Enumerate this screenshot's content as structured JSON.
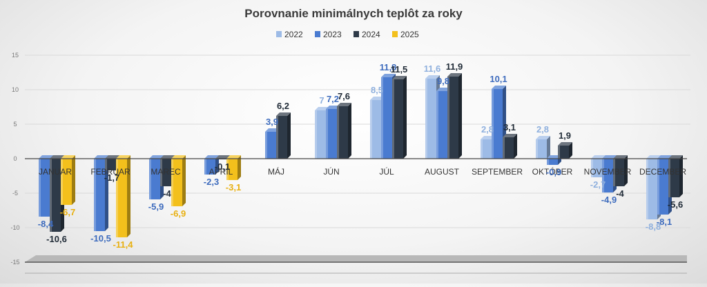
{
  "chart_data": {
    "type": "bar",
    "title": "Porovnanie minimálnych teplôt za roky",
    "categories": [
      "JANUAR",
      "FEBRUAR",
      "MAREC",
      "APRIL",
      "MÁJ",
      "JÚN",
      "JÚL",
      "AUGUST",
      "SEPTEMBER",
      "OKTÓBER",
      "NOVEMBER",
      "DECEMBER"
    ],
    "series": [
      {
        "name": "2022",
        "color": "#9dbbe6",
        "label_color": "#8fb0de",
        "values": [
          null,
          null,
          null,
          null,
          null,
          7,
          8.5,
          11.6,
          2.8,
          2.8,
          -2.7,
          -8.8
        ],
        "labels": [
          null,
          null,
          null,
          null,
          null,
          "7",
          "8,5",
          "11,6",
          "2,8",
          "2,8",
          "-2,7",
          "-8,8"
        ]
      },
      {
        "name": "2023",
        "color": "#4a7bd0",
        "label_color": "#3d6bbd",
        "values": [
          -8.4,
          -10.5,
          -5.9,
          -2.3,
          3.9,
          7.2,
          11.8,
          9.8,
          10.1,
          -0.9,
          -4.9,
          -8.1
        ],
        "labels": [
          "-8,4",
          "-10,5",
          "-5,9",
          "-2,3",
          "3,9",
          "7,2",
          "11,8",
          "9,8",
          "10,1",
          "-0,9",
          "-4,9",
          "-8,1"
        ]
      },
      {
        "name": "2024",
        "color": "#2e3a48",
        "label_color": "#1f2a36",
        "values": [
          -10.6,
          -1.7,
          -4,
          -0.1,
          6.2,
          7.6,
          11.5,
          11.9,
          3.1,
          1.9,
          -4,
          -5.6
        ],
        "labels": [
          "-10,6",
          "-1,7",
          "-4",
          "-0,1",
          "6,2",
          "7,6",
          "11,5",
          "11,9",
          "3,1",
          "1,9",
          "-4",
          "-5,6"
        ]
      },
      {
        "name": "2025",
        "color": "#f3c01c",
        "label_color": "#e8b010",
        "values": [
          -6.7,
          -11.4,
          -6.9,
          -3.1,
          null,
          null,
          null,
          null,
          null,
          null,
          null,
          null
        ],
        "labels": [
          "-6,7",
          "-11,4",
          "-6,9",
          "-3,1",
          null,
          null,
          null,
          null,
          null,
          null,
          null,
          null
        ]
      }
    ],
    "y_ticks": [
      "15",
      "10",
      "5",
      "0",
      "-5",
      "-10",
      "-15"
    ],
    "ylim": [
      -15,
      15
    ],
    "legend_position": "top-center",
    "grid": true
  }
}
